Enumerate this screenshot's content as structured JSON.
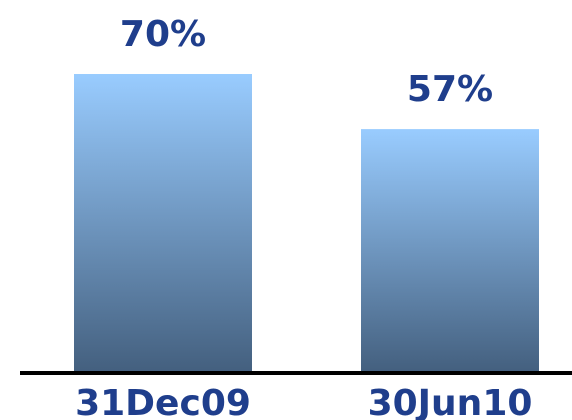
{
  "chart_data": {
    "type": "bar",
    "categories": [
      "31Dec09",
      "30Jun10"
    ],
    "values": [
      70,
      57
    ],
    "data_labels": [
      "70%",
      "57%"
    ],
    "title": "",
    "xlabel": "",
    "ylabel": "",
    "ylim": [
      0,
      100
    ],
    "grid": false,
    "legend": "none"
  },
  "colors": {
    "bar_top": "#99ccff",
    "bar_bottom": "#44607f",
    "label": "#1f3e8c",
    "axis": "#000000"
  }
}
